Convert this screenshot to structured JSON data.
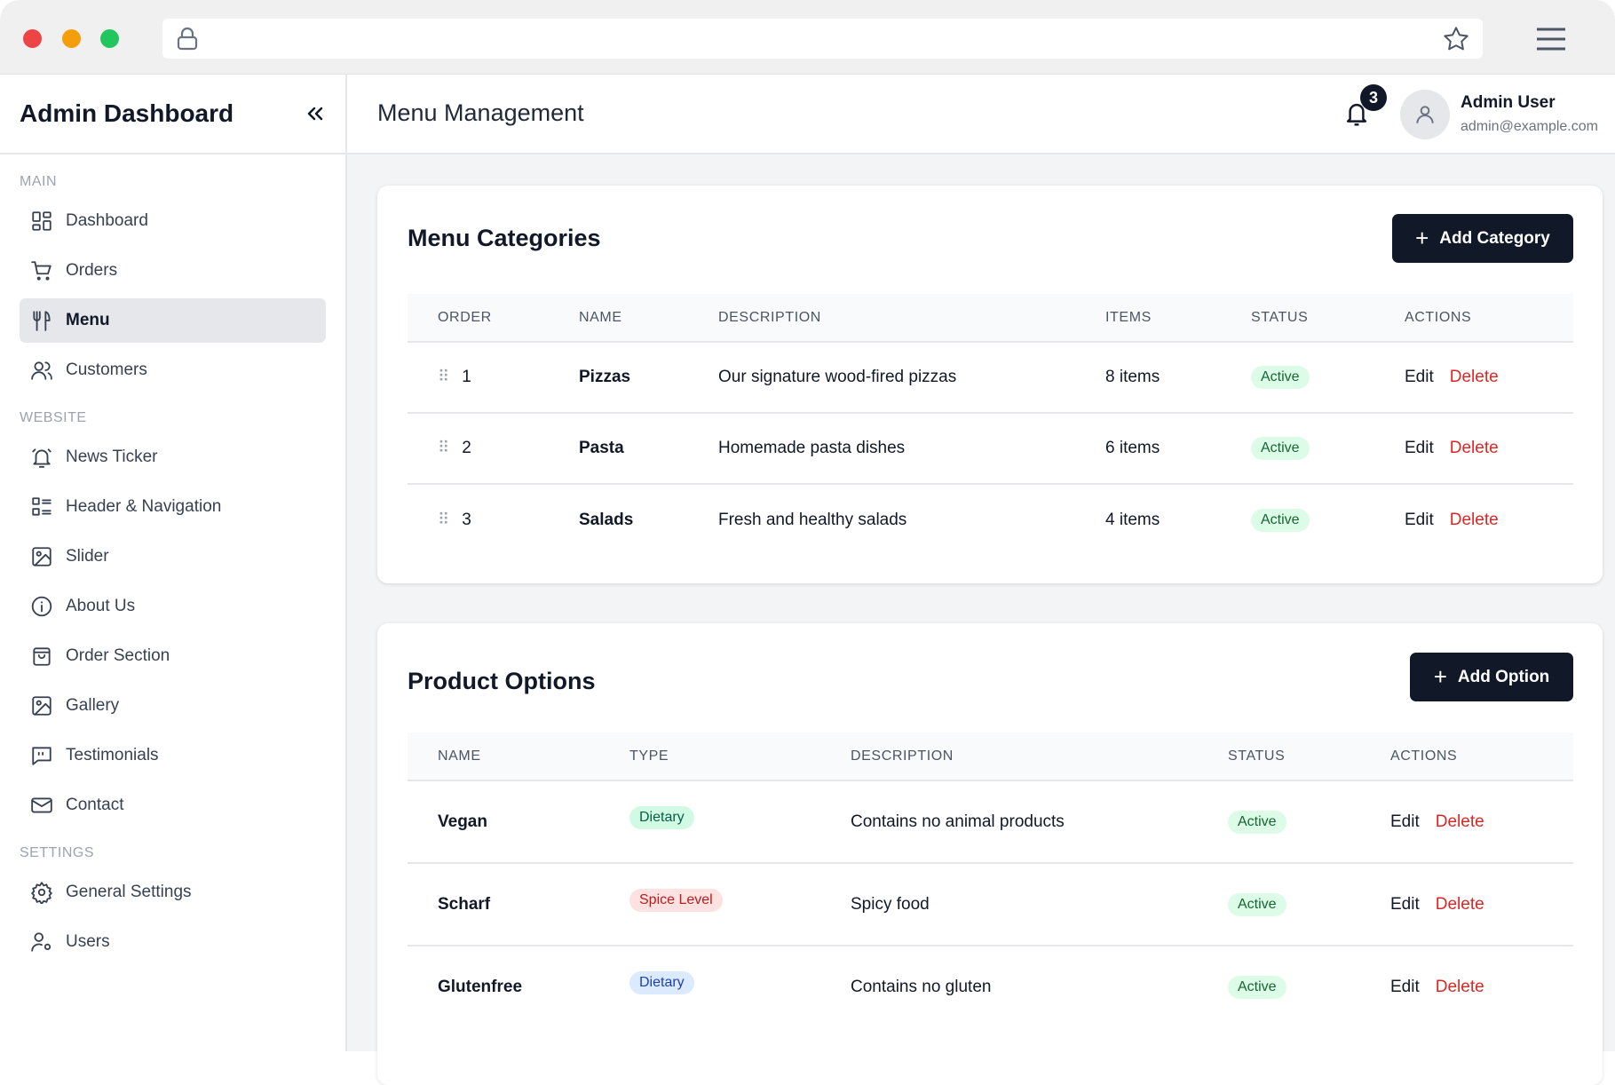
{
  "browser": {
    "dots": [
      "#ef4444",
      "#f59e0b",
      "#22c55e"
    ],
    "icons": [
      "lock-icon",
      "star-icon",
      "hamburger-icon"
    ]
  },
  "sidebar": {
    "title": "Admin Dashboard",
    "collapse_icon": "chevrons-left-icon",
    "sections": [
      {
        "label": "MAIN",
        "items": [
          {
            "label": "Dashboard",
            "icon": "dashboard-icon"
          },
          {
            "label": "Orders",
            "icon": "cart-icon"
          },
          {
            "label": "Menu",
            "icon": "utensils-icon",
            "active": true
          },
          {
            "label": "Customers",
            "icon": "users-icon"
          }
        ]
      },
      {
        "label": "WEBSITE",
        "items": [
          {
            "label": "News Ticker",
            "icon": "bell-icon"
          },
          {
            "label": "Header & Navigation",
            "icon": "list-icon"
          },
          {
            "label": "Slider",
            "icon": "image-icon"
          },
          {
            "label": "About Us",
            "icon": "info-icon"
          },
          {
            "label": "Order Section",
            "icon": "bag-icon"
          },
          {
            "label": "Gallery",
            "icon": "image-icon"
          },
          {
            "label": "Testimonials",
            "icon": "quote-icon"
          },
          {
            "label": "Contact",
            "icon": "mail-icon"
          }
        ]
      },
      {
        "label": "SETTINGS",
        "items": [
          {
            "label": "General Settings",
            "icon": "gear-icon"
          },
          {
            "label": "Users",
            "icon": "user-gear-icon"
          }
        ]
      }
    ]
  },
  "header": {
    "title": "Menu Management",
    "notifications": "3",
    "user_name": "Admin User",
    "user_email": "admin@example.com"
  },
  "categories": {
    "title": "Menu Categories",
    "add_label": "Add Category",
    "columns": [
      "ORDER",
      "NAME",
      "DESCRIPTION",
      "ITEMS",
      "STATUS",
      "ACTIONS"
    ],
    "rows": [
      {
        "order": "1",
        "name": "Pizzas",
        "description": "Our signature wood-fired pizzas",
        "items": "8 items",
        "status": "Active",
        "edit": "Edit",
        "delete": "Delete"
      },
      {
        "order": "2",
        "name": "Pasta",
        "description": "Homemade pasta dishes",
        "items": "6 items",
        "status": "Active",
        "edit": "Edit",
        "delete": "Delete"
      },
      {
        "order": "3",
        "name": "Salads",
        "description": "Fresh and healthy salads",
        "items": "4 items",
        "status": "Active",
        "edit": "Edit",
        "delete": "Delete"
      }
    ]
  },
  "options": {
    "title": "Product Options",
    "add_label": "Add Option",
    "columns": [
      "NAME",
      "TYPE",
      "DESCRIPTION",
      "STATUS",
      "ACTIONS"
    ],
    "rows": [
      {
        "name": "Vegan",
        "type": "Dietary",
        "type_bg": "#d1fae5",
        "type_color": "#065f46",
        "description": "Contains no animal products",
        "status": "Active",
        "edit": "Edit",
        "delete": "Delete"
      },
      {
        "name": "Scharf",
        "type": "Spice Level",
        "type_bg": "#fee2e2",
        "type_color": "#b91c1c",
        "description": "Spicy food",
        "status": "Active",
        "edit": "Edit",
        "delete": "Delete"
      },
      {
        "name": "Glutenfree",
        "type": "Dietary",
        "type_bg": "#dbeafe",
        "type_color": "#1e40af",
        "description": "Contains no gluten",
        "status": "Active",
        "edit": "Edit",
        "delete": "Delete"
      }
    ]
  }
}
